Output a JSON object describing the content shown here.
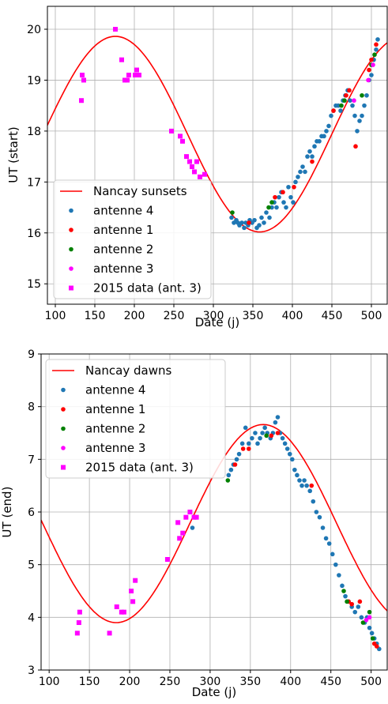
{
  "chart_data": [
    {
      "type": "scatter",
      "xlabel": "Date (j)",
      "ylabel": "UT (start)",
      "xlim": [
        90,
        520
      ],
      "ylim": [
        14.6,
        20.45
      ],
      "xticks": [
        100,
        150,
        200,
        250,
        300,
        350,
        400,
        450,
        500
      ],
      "yticks": [
        15,
        16,
        17,
        18,
        19,
        20
      ],
      "grid": true,
      "legend_position": "lower-left",
      "curve": {
        "name": "Nancay sunsets",
        "color": "#ff0000",
        "mean": 17.94,
        "amplitude": 1.92,
        "phase_day": 176
      },
      "series": [
        {
          "name": "antenne 4",
          "color": "#1f77b4",
          "marker": "circle",
          "points": [
            [
              323,
              16.3
            ],
            [
              326,
              16.2
            ],
            [
              329,
              16.25
            ],
            [
              331,
              16.2
            ],
            [
              333,
              16.15
            ],
            [
              336,
              16.2
            ],
            [
              339,
              16.1
            ],
            [
              341,
              16.2
            ],
            [
              344,
              16.15
            ],
            [
              346,
              16.25
            ],
            [
              349,
              16.2
            ],
            [
              352,
              16.25
            ],
            [
              355,
              16.1
            ],
            [
              358,
              16.15
            ],
            [
              361,
              16.3
            ],
            [
              364,
              16.2
            ],
            [
              367,
              16.4
            ],
            [
              371,
              16.3
            ],
            [
              374,
              16.5
            ],
            [
              377,
              16.6
            ],
            [
              380,
              16.5
            ],
            [
              383,
              16.7
            ],
            [
              386,
              16.8
            ],
            [
              389,
              16.6
            ],
            [
              392,
              16.5
            ],
            [
              395,
              16.9
            ],
            [
              398,
              16.7
            ],
            [
              401,
              16.6
            ],
            [
              404,
              17.0
            ],
            [
              407,
              17.1
            ],
            [
              410,
              17.2
            ],
            [
              413,
              17.3
            ],
            [
              416,
              17.2
            ],
            [
              419,
              17.5
            ],
            [
              422,
              17.6
            ],
            [
              425,
              17.5
            ],
            [
              428,
              17.7
            ],
            [
              431,
              17.8
            ],
            [
              434,
              17.8
            ],
            [
              437,
              17.9
            ],
            [
              440,
              17.9
            ],
            [
              443,
              18.0
            ],
            [
              446,
              18.1
            ],
            [
              449,
              18.3
            ],
            [
              452,
              18.4
            ],
            [
              455,
              18.5
            ],
            [
              458,
              18.5
            ],
            [
              461,
              18.4
            ],
            [
              464,
              18.6
            ],
            [
              467,
              18.7
            ],
            [
              470,
              18.8
            ],
            [
              473,
              18.6
            ],
            [
              476,
              18.5
            ],
            [
              479,
              18.3
            ],
            [
              482,
              18.0
            ],
            [
              485,
              18.2
            ],
            [
              488,
              18.3
            ],
            [
              491,
              18.5
            ],
            [
              494,
              18.7
            ],
            [
              497,
              19.0
            ],
            [
              500,
              19.1
            ],
            [
              503,
              19.4
            ],
            [
              506,
              19.6
            ],
            [
              508,
              19.8
            ]
          ]
        },
        {
          "name": "antenne 1",
          "color": "#ff0000",
          "marker": "circle",
          "points": [
            [
              345,
              16.2
            ],
            [
              378,
              16.7
            ],
            [
              388,
              16.8
            ],
            [
              402,
              16.9
            ],
            [
              425,
              17.4
            ],
            [
              452,
              18.4
            ],
            [
              468,
              18.7
            ],
            [
              472,
              18.8
            ],
            [
              480,
              17.7
            ],
            [
              497,
              19.2
            ],
            [
              500,
              19.4
            ],
            [
              506,
              19.7
            ]
          ]
        },
        {
          "name": "antenne 2",
          "color": "#008000",
          "marker": "circle",
          "points": [
            [
              324,
              16.4
            ],
            [
              370,
              16.5
            ],
            [
              374,
              16.6
            ],
            [
              462,
              18.5
            ],
            [
              466,
              18.6
            ],
            [
              488,
              18.7
            ],
            [
              500,
              19.3
            ],
            [
              504,
              19.5
            ]
          ]
        },
        {
          "name": "antenne 3",
          "color": "#ff00ff",
          "marker": "circle",
          "points": [
            [
              478,
              18.6
            ],
            [
              496,
              19.0
            ],
            [
              502,
              19.3
            ]
          ]
        },
        {
          "name": "2015 data (ant. 3)",
          "color": "#ff00ff",
          "marker": "square",
          "points": [
            [
              133,
              18.6
            ],
            [
              134,
              19.1
            ],
            [
              136,
              19.0
            ],
            [
              176,
              20.0
            ],
            [
              184,
              19.4
            ],
            [
              188,
              19.0
            ],
            [
              191,
              19.0
            ],
            [
              193,
              19.1
            ],
            [
              201,
              19.1
            ],
            [
              203,
              19.2
            ],
            [
              206,
              19.1
            ],
            [
              247,
              18.0
            ],
            [
              258,
              17.9
            ],
            [
              261,
              17.8
            ],
            [
              266,
              17.5
            ],
            [
              270,
              17.4
            ],
            [
              273,
              17.3
            ],
            [
              276,
              17.2
            ],
            [
              279,
              17.4
            ],
            [
              283,
              17.1
            ],
            [
              289,
              17.15
            ]
          ]
        }
      ]
    },
    {
      "type": "scatter",
      "xlabel": "Date (j)",
      "ylabel": "UT (end)",
      "xlim": [
        90,
        520
      ],
      "ylim": [
        3.0,
        9.0
      ],
      "xticks": [
        100,
        150,
        200,
        250,
        300,
        350,
        400,
        450,
        500
      ],
      "yticks": [
        3,
        4,
        5,
        6,
        7,
        8,
        9
      ],
      "grid": true,
      "legend_position": "upper-left",
      "curve": {
        "name": "Nancay dawns",
        "color": "#ff0000",
        "mean": 5.78,
        "amplitude": 1.88,
        "phase_day": 366
      },
      "series": [
        {
          "name": "antenne 4",
          "color": "#1f77b4",
          "marker": "circle",
          "points": [
            [
              278,
              5.7
            ],
            [
              281,
              5.9
            ],
            [
              323,
              6.7
            ],
            [
              326,
              6.8
            ],
            [
              329,
              6.9
            ],
            [
              333,
              7.0
            ],
            [
              336,
              7.1
            ],
            [
              340,
              7.3
            ],
            [
              344,
              7.6
            ],
            [
              348,
              7.3
            ],
            [
              352,
              7.4
            ],
            [
              356,
              7.5
            ],
            [
              359,
              7.3
            ],
            [
              362,
              7.4
            ],
            [
              365,
              7.5
            ],
            [
              368,
              7.6
            ],
            [
              371,
              7.5
            ],
            [
              375,
              7.4
            ],
            [
              378,
              7.5
            ],
            [
              381,
              7.7
            ],
            [
              384,
              7.8
            ],
            [
              387,
              7.5
            ],
            [
              390,
              7.4
            ],
            [
              393,
              7.3
            ],
            [
              396,
              7.2
            ],
            [
              399,
              7.1
            ],
            [
              402,
              7.0
            ],
            [
              405,
              6.8
            ],
            [
              408,
              6.7
            ],
            [
              411,
              6.6
            ],
            [
              414,
              6.5
            ],
            [
              417,
              6.6
            ],
            [
              420,
              6.5
            ],
            [
              424,
              6.4
            ],
            [
              428,
              6.2
            ],
            [
              432,
              6.0
            ],
            [
              436,
              5.9
            ],
            [
              440,
              5.7
            ],
            [
              444,
              5.5
            ],
            [
              448,
              5.4
            ],
            [
              452,
              5.2
            ],
            [
              456,
              5.0
            ],
            [
              460,
              4.8
            ],
            [
              464,
              4.6
            ],
            [
              468,
              4.4
            ],
            [
              472,
              4.3
            ],
            [
              476,
              4.2
            ],
            [
              480,
              4.1
            ],
            [
              484,
              4.2
            ],
            [
              488,
              4.0
            ],
            [
              492,
              3.9
            ],
            [
              495,
              4.0
            ],
            [
              498,
              3.8
            ],
            [
              501,
              3.7
            ],
            [
              504,
              3.6
            ],
            [
              507,
              3.5
            ],
            [
              510,
              3.4
            ]
          ]
        },
        {
          "name": "antenne 1",
          "color": "#ff0000",
          "marker": "circle",
          "points": [
            [
              331,
              6.9
            ],
            [
              341,
              7.2
            ],
            [
              348,
              7.2
            ],
            [
              376,
              7.45
            ],
            [
              384,
              7.5
            ],
            [
              426,
              6.5
            ],
            [
              472,
              4.3
            ],
            [
              476,
              4.25
            ],
            [
              486,
              4.3
            ],
            [
              504,
              3.5
            ],
            [
              507,
              3.45
            ]
          ]
        },
        {
          "name": "antenne 2",
          "color": "#008000",
          "marker": "circle",
          "points": [
            [
              322,
              6.6
            ],
            [
              370,
              7.45
            ],
            [
              466,
              4.5
            ],
            [
              470,
              4.3
            ],
            [
              490,
              3.9
            ],
            [
              498,
              4.1
            ],
            [
              502,
              3.6
            ]
          ]
        },
        {
          "name": "antenne 3",
          "color": "#ff00ff",
          "marker": "circle",
          "points": [
            [
              494,
              3.95
            ],
            [
              498,
              4.0
            ]
          ]
        },
        {
          "name": "2015 data (ant. 3)",
          "color": "#ff00ff",
          "marker": "square",
          "points": [
            [
              135,
              3.7
            ],
            [
              137,
              3.9
            ],
            [
              138,
              4.1
            ],
            [
              175,
              3.7
            ],
            [
              184,
              4.2
            ],
            [
              190,
              4.1
            ],
            [
              193,
              4.1
            ],
            [
              202,
              4.5
            ],
            [
              204,
              4.3
            ],
            [
              207,
              4.7
            ],
            [
              247,
              5.1
            ],
            [
              260,
              5.8
            ],
            [
              262,
              5.5
            ],
            [
              266,
              5.6
            ],
            [
              270,
              5.9
            ],
            [
              275,
              6.0
            ],
            [
              280,
              5.9
            ],
            [
              283,
              5.9
            ]
          ]
        }
      ]
    }
  ]
}
